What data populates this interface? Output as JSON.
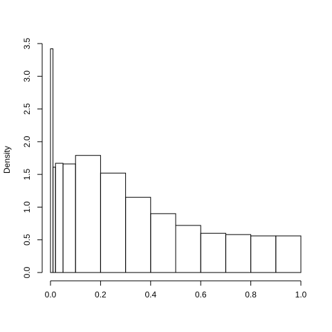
{
  "chart_data": {
    "type": "bar",
    "subtype": "histogram",
    "title": "",
    "xlabel": "",
    "ylabel": "Density",
    "xlim": [
      0.0,
      1.0
    ],
    "ylim": [
      0.0,
      3.5
    ],
    "x_ticks": [
      "0.0",
      "0.2",
      "0.4",
      "0.6",
      "0.8",
      "1.0"
    ],
    "y_ticks": [
      "0.0",
      "0.5",
      "1.0",
      "1.5",
      "2.0",
      "2.5",
      "3.0",
      "3.5"
    ],
    "bins": [
      {
        "x0": 0.0,
        "x1": 0.01,
        "density": 3.42
      },
      {
        "x0": 0.01,
        "x1": 0.02,
        "density": 1.61
      },
      {
        "x0": 0.02,
        "x1": 0.05,
        "density": 1.67
      },
      {
        "x0": 0.05,
        "x1": 0.1,
        "density": 1.66
      },
      {
        "x0": 0.1,
        "x1": 0.2,
        "density": 1.79
      },
      {
        "x0": 0.2,
        "x1": 0.3,
        "density": 1.52
      },
      {
        "x0": 0.3,
        "x1": 0.4,
        "density": 1.15
      },
      {
        "x0": 0.4,
        "x1": 0.5,
        "density": 0.9
      },
      {
        "x0": 0.5,
        "x1": 0.6,
        "density": 0.72
      },
      {
        "x0": 0.6,
        "x1": 0.7,
        "density": 0.6
      },
      {
        "x0": 0.7,
        "x1": 0.8,
        "density": 0.58
      },
      {
        "x0": 0.8,
        "x1": 0.9,
        "density": 0.56
      },
      {
        "x0": 0.9,
        "x1": 1.0,
        "density": 0.56
      }
    ],
    "grid": false,
    "legend": "none"
  }
}
